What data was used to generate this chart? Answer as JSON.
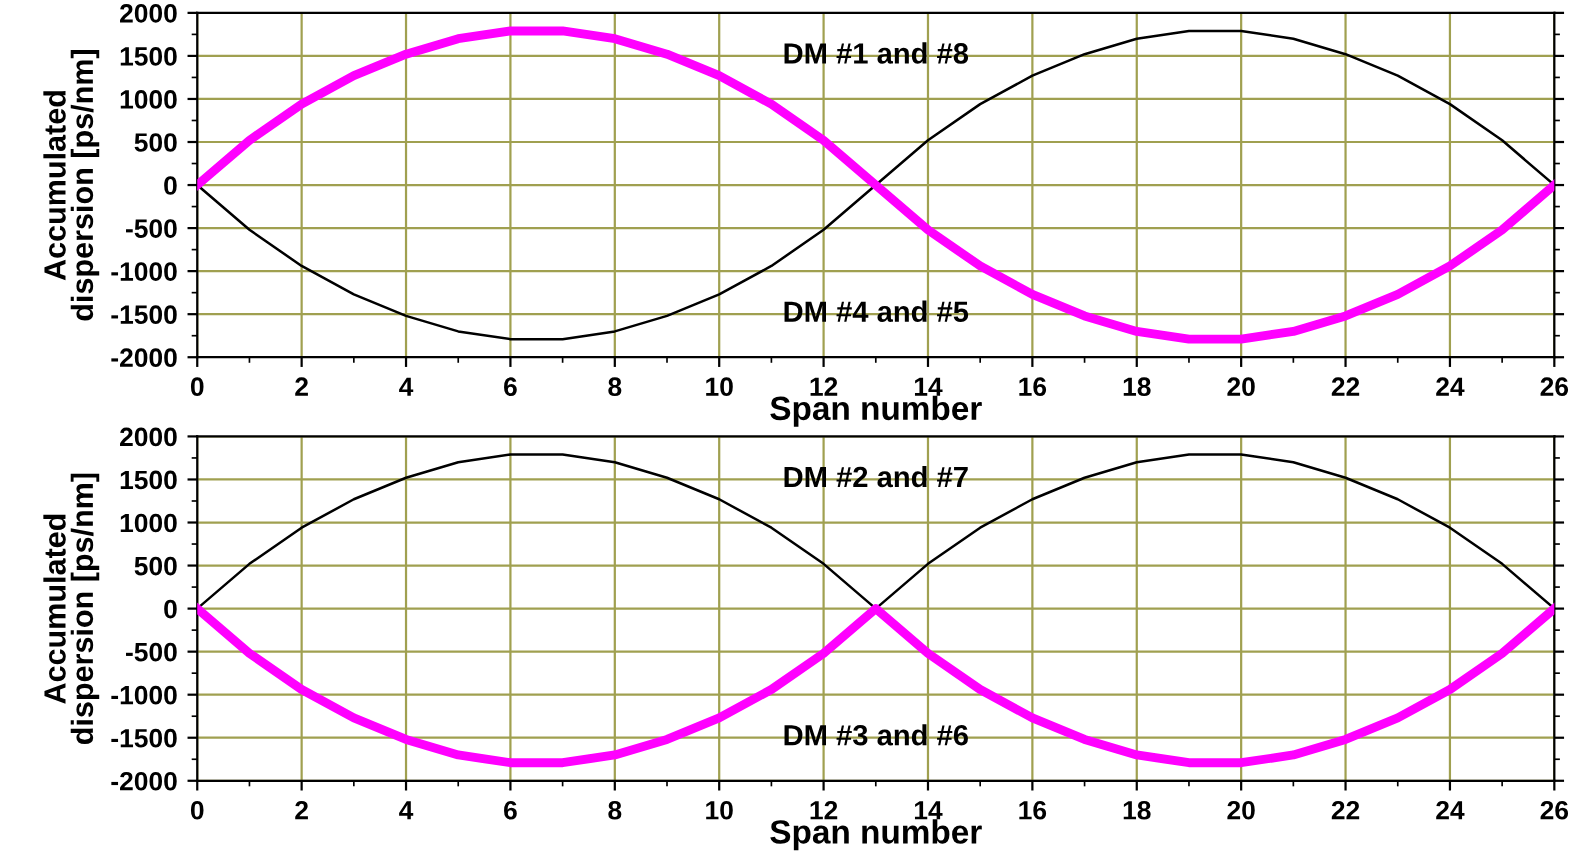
{
  "chart_data": [
    {
      "type": "line",
      "xlabel": "Span number",
      "ylabel": "Accumulated\ndispersion [ps/nm]",
      "x": [
        0,
        1,
        2,
        3,
        4,
        5,
        6,
        7,
        8,
        9,
        10,
        11,
        12,
        13,
        14,
        15,
        16,
        17,
        18,
        19,
        20,
        21,
        22,
        23,
        24,
        25,
        26
      ],
      "series": [
        {
          "color": "#ff00ff",
          "values": [
            0,
            520,
            940,
            1270,
            1520,
            1700,
            1790,
            1790,
            1700,
            1520,
            1270,
            940,
            520,
            0,
            -520,
            -940,
            -1270,
            -1520,
            -1700,
            -1790,
            -1790,
            -1700,
            -1520,
            -1270,
            -940,
            -520,
            0
          ]
        },
        {
          "color": "#000000",
          "values": [
            0,
            -520,
            -940,
            -1270,
            -1520,
            -1700,
            -1790,
            -1790,
            -1700,
            -1520,
            -1270,
            -940,
            -520,
            0,
            520,
            940,
            1270,
            1520,
            1700,
            1790,
            1790,
            1700,
            1520,
            1270,
            940,
            520,
            0
          ]
        }
      ],
      "annotations": [
        "DM #1 and #8",
        "DM #4 and #5"
      ],
      "xlim": [
        0,
        26
      ],
      "xticks": [
        0,
        2,
        4,
        6,
        8,
        10,
        12,
        14,
        16,
        18,
        20,
        22,
        24,
        26
      ],
      "ylim": [
        -2000,
        2000
      ],
      "yticks": [
        -2000,
        -1500,
        -1000,
        -500,
        0,
        500,
        1000,
        1500,
        2000
      ],
      "grid": true,
      "marker": "none",
      "line_style": "solid",
      "legend": false
    },
    {
      "type": "line",
      "xlabel": "Span number",
      "ylabel": "Accumulated\ndispersion [ps/nm]",
      "x": [
        0,
        1,
        2,
        3,
        4,
        5,
        6,
        7,
        8,
        9,
        10,
        11,
        12,
        13,
        14,
        15,
        16,
        17,
        18,
        19,
        20,
        21,
        22,
        23,
        24,
        25,
        26
      ],
      "series": [
        {
          "color": "#ff00ff",
          "values": [
            0,
            -520,
            -940,
            -1270,
            -1520,
            -1700,
            -1790,
            -1790,
            -1700,
            -1520,
            -1270,
            -940,
            -520,
            0,
            -520,
            -940,
            -1270,
            -1520,
            -1700,
            -1790,
            -1790,
            -1700,
            -1520,
            -1270,
            -940,
            -520,
            0
          ]
        },
        {
          "color": "#000000",
          "values": [
            0,
            520,
            940,
            1270,
            1520,
            1700,
            1790,
            1790,
            1700,
            1520,
            1270,
            940,
            520,
            0,
            520,
            940,
            1270,
            1520,
            1700,
            1790,
            1790,
            1700,
            1520,
            1270,
            940,
            520,
            0
          ]
        }
      ],
      "annotations": [
        "DM #2 and #7",
        "DM #3 and #6"
      ],
      "xlim": [
        0,
        26
      ],
      "xticks": [
        0,
        2,
        4,
        6,
        8,
        10,
        12,
        14,
        16,
        18,
        20,
        22,
        24,
        26
      ],
      "ylim": [
        -2000,
        2000
      ],
      "yticks": [
        -2000,
        -1500,
        -1000,
        -500,
        0,
        500,
        1000,
        1500,
        2000
      ],
      "grid": true,
      "marker": "none",
      "line_style": "solid",
      "legend": false
    }
  ]
}
